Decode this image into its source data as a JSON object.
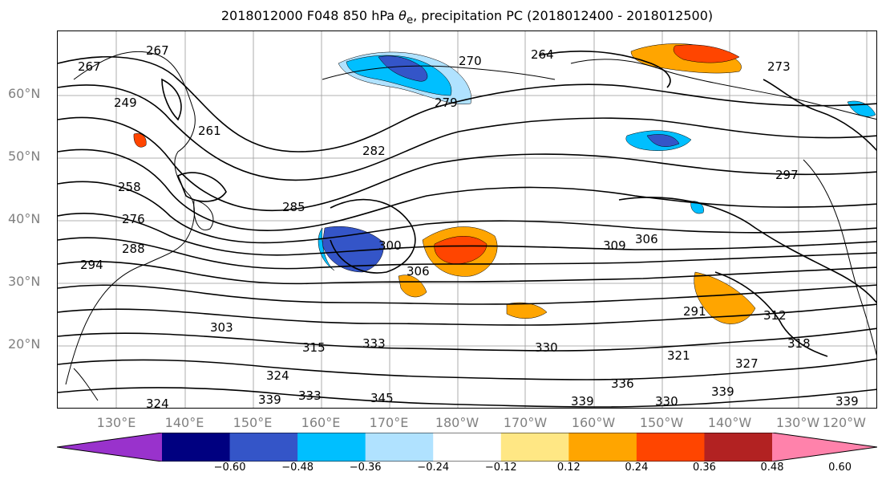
{
  "title": {
    "prefix": "2018012000 F048 850 hPa ",
    "theta": "θ",
    "sub": "e",
    "suffix": ", precipitation PC (2018012400 - 2018012500)"
  },
  "latitude_labels": [
    "60°N",
    "50°N",
    "40°N",
    "30°N",
    "20°N"
  ],
  "longitude_labels": [
    "130°E",
    "140°E",
    "150°E",
    "160°E",
    "170°E",
    "180°W",
    "170°W",
    "160°W",
    "150°W",
    "140°W",
    "130°W",
    "120°W"
  ],
  "contour_labels": [
    "267",
    "267",
    "249",
    "264",
    "270",
    "273",
    "279",
    "261",
    "282",
    "258",
    "276",
    "288",
    "294",
    "285",
    "300",
    "306",
    "309",
    "306",
    "297",
    "291",
    "312",
    "303",
    "318",
    "315",
    "333",
    "330",
    "321",
    "327",
    "324",
    "339",
    "336",
    "330",
    "339",
    "333",
    "339",
    "345",
    "324",
    "339"
  ],
  "colorbar": {
    "ticks": [
      "−0.60",
      "−0.48",
      "−0.36",
      "−0.24",
      "−0.12",
      "0.12",
      "0.24",
      "0.36",
      "0.48",
      "0.60"
    ],
    "colors": [
      "#9932cc",
      "#000080",
      "#3455c8",
      "#00bfff",
      "#b0e2ff",
      "#ffffff",
      "#ffe784",
      "#ffa500",
      "#ff4500",
      "#b22222",
      "#ff82ab"
    ]
  }
}
